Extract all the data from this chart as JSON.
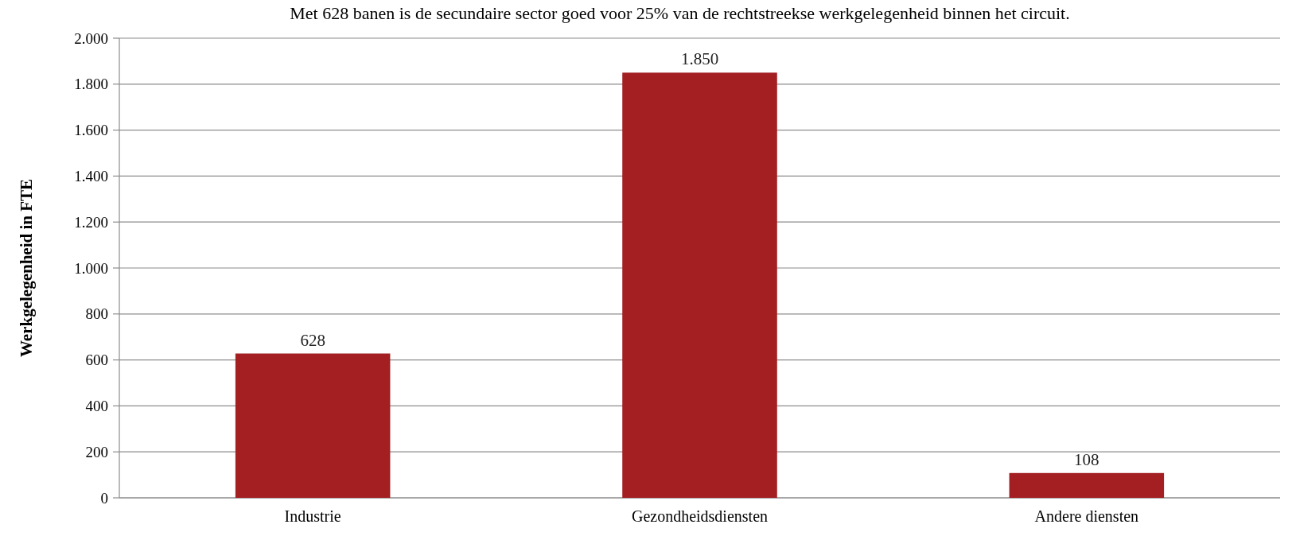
{
  "chart_data": {
    "type": "bar",
    "title": "Met 628 banen is de secundaire sector goed voor 25% van de rechtstreekse werkgelegenheid binnen het circuit.",
    "ylabel": "Werkgelegenheid in FTE",
    "categories": [
      "Industrie",
      "Gezondheidsdiensten",
      "Andere diensten"
    ],
    "values": [
      628,
      1850,
      108
    ],
    "color": "#a31f22",
    "data_labels": true,
    "value_labels": [
      "628",
      "1.850",
      "108"
    ],
    "ylim": [
      0,
      2000
    ],
    "yticks": [
      {
        "value": 0,
        "label": "0"
      },
      {
        "value": 200,
        "label": "200"
      },
      {
        "value": 400,
        "label": "400"
      },
      {
        "value": 600,
        "label": "600"
      },
      {
        "value": 800,
        "label": "800"
      },
      {
        "value": 1000,
        "label": "1.000"
      },
      {
        "value": 1200,
        "label": "1.200"
      },
      {
        "value": 1400,
        "label": "1.400"
      },
      {
        "value": 1600,
        "label": "1.600"
      },
      {
        "value": 1800,
        "label": "1.800"
      },
      {
        "value": 2000,
        "label": "2.000"
      }
    ],
    "grid": "y"
  }
}
